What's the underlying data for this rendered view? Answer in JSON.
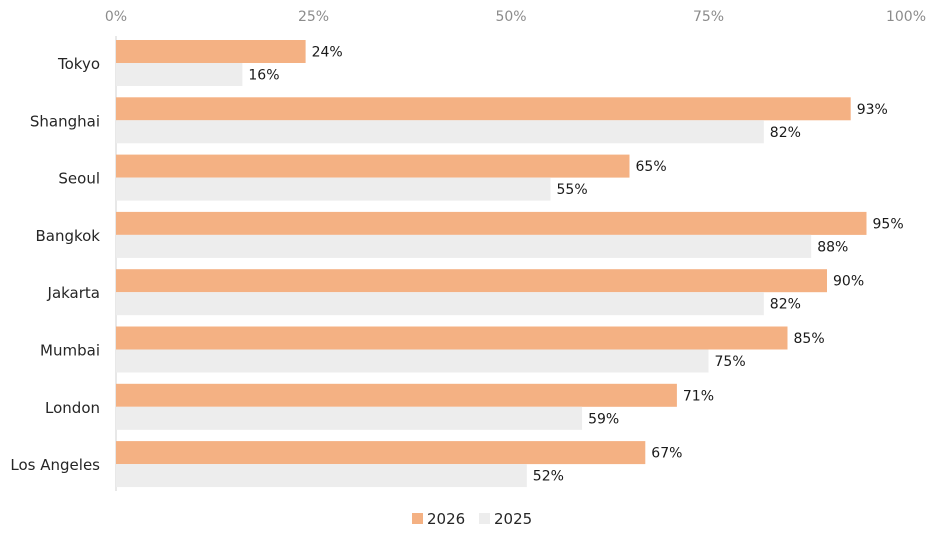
{
  "chart_data": {
    "type": "bar",
    "orientation": "horizontal",
    "categories": [
      "Tokyo",
      "Shanghai",
      "Seoul",
      "Bangkok",
      "Jakarta",
      "Mumbai",
      "London",
      "Los Angeles"
    ],
    "series": [
      {
        "name": "2026",
        "color": "#f4b183",
        "values": [
          24,
          93,
          65,
          95,
          90,
          85,
          71,
          67
        ],
        "labels": [
          "24%",
          "93%",
          "65%",
          "95%",
          "90%",
          "85%",
          "71%",
          "67%"
        ]
      },
      {
        "name": "2025",
        "color": "#ededed",
        "values": [
          16,
          82,
          55,
          88,
          82,
          75,
          59,
          52
        ],
        "labels": [
          "16%",
          "82%",
          "55%",
          "88%",
          "82%",
          "75%",
          "59%",
          "52%"
        ]
      }
    ],
    "xlim": [
      0,
      100
    ],
    "xticks": [
      0,
      25,
      50,
      75,
      100
    ],
    "xtick_labels": [
      "0%",
      "25%",
      "50%",
      "75%",
      "100%"
    ],
    "x_axis_position": "top",
    "grid": false,
    "legend_position": "bottom-center"
  }
}
